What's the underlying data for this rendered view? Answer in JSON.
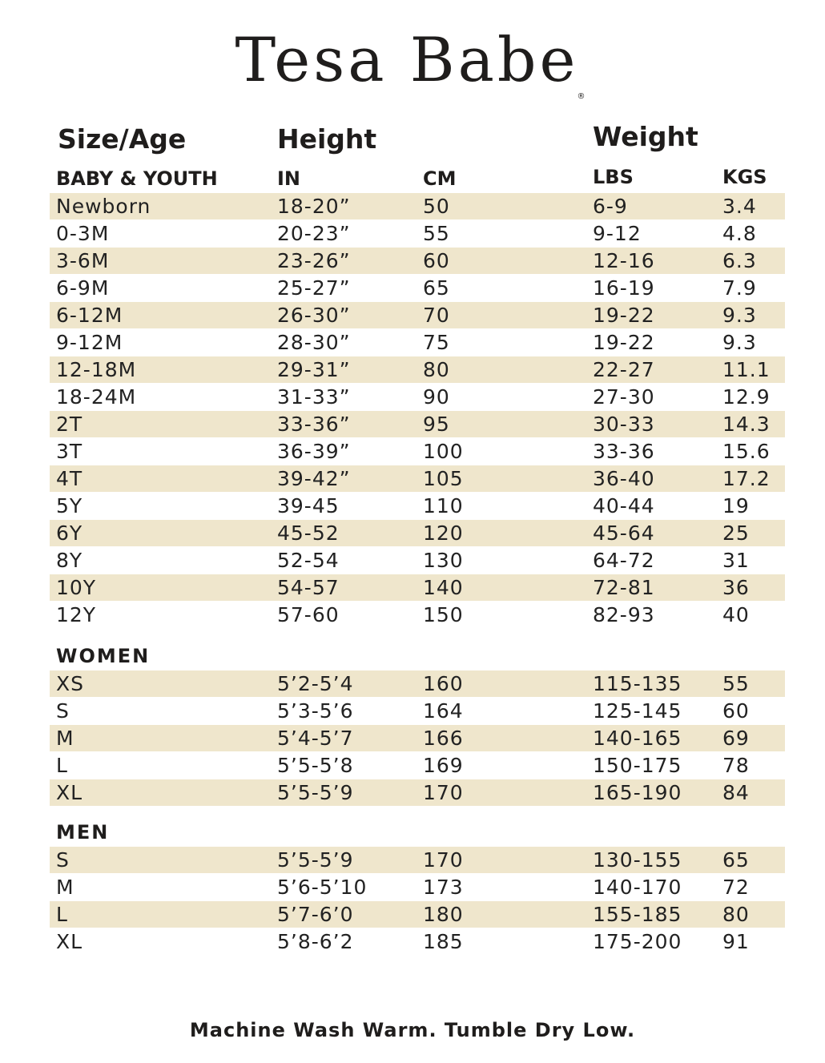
{
  "brand": {
    "name": "Tesa Babe",
    "registered_mark": "®"
  },
  "headers": {
    "size_age": "Size/Age",
    "height": "Height",
    "weight": "Weight",
    "in": "IN",
    "cm": "CM",
    "lbs": "LBS",
    "kgs": "KGS"
  },
  "sections": [
    {
      "title": "BABY & YOUTH",
      "rows": [
        {
          "size": "Newborn",
          "in": "18-20”",
          "cm": "50",
          "lbs": "6-9",
          "kgs": "3.4"
        },
        {
          "size": "0-3M",
          "in": "20-23”",
          "cm": "55",
          "lbs": "9-12",
          "kgs": "4.8"
        },
        {
          "size": "3-6M",
          "in": "23-26”",
          "cm": "60",
          "lbs": "12-16",
          "kgs": "6.3"
        },
        {
          "size": "6-9M",
          "in": "25-27”",
          "cm": "65",
          "lbs": "16-19",
          "kgs": "7.9"
        },
        {
          "size": "6-12M",
          "in": "26-30”",
          "cm": "70",
          "lbs": "19-22",
          "kgs": "9.3"
        },
        {
          "size": "9-12M",
          "in": "28-30”",
          "cm": "75",
          "lbs": "19-22",
          "kgs": "9.3"
        },
        {
          "size": "12-18M",
          "in": "29-31”",
          "cm": "80",
          "lbs": "22-27",
          "kgs": "11.1"
        },
        {
          "size": "18-24M",
          "in": "31-33”",
          "cm": "90",
          "lbs": "27-30",
          "kgs": "12.9"
        },
        {
          "size": "2T",
          "in": "33-36”",
          "cm": "95",
          "lbs": "30-33",
          "kgs": "14.3"
        },
        {
          "size": "3T",
          "in": "36-39”",
          "cm": "100",
          "lbs": "33-36",
          "kgs": "15.6"
        },
        {
          "size": "4T",
          "in": "39-42”",
          "cm": "105",
          "lbs": "36-40",
          "kgs": "17.2"
        },
        {
          "size": "5Y",
          "in": "39-45",
          "cm": "110",
          "lbs": "40-44",
          "kgs": "19"
        },
        {
          "size": "6Y",
          "in": "45-52",
          "cm": "120",
          "lbs": "45-64",
          "kgs": "25"
        },
        {
          "size": "8Y",
          "in": "52-54",
          "cm": "130",
          "lbs": "64-72",
          "kgs": "31"
        },
        {
          "size": "10Y",
          "in": "54-57",
          "cm": "140",
          "lbs": "72-81",
          "kgs": "36"
        },
        {
          "size": "12Y",
          "in": "57-60",
          "cm": "150",
          "lbs": "82-93",
          "kgs": "40"
        }
      ]
    },
    {
      "title": "WOMEN",
      "rows": [
        {
          "size": "XS",
          "in": "5’2-5’4",
          "cm": "160",
          "lbs": "115-135",
          "kgs": "55"
        },
        {
          "size": "S",
          "in": "5’3-5’6",
          "cm": "164",
          "lbs": "125-145",
          "kgs": "60"
        },
        {
          "size": "M",
          "in": "5’4-5’7",
          "cm": "166",
          "lbs": "140-165",
          "kgs": "69"
        },
        {
          "size": "L",
          "in": "5’5-5’8",
          "cm": "169",
          "lbs": "150-175",
          "kgs": "78"
        },
        {
          "size": "XL",
          "in": "5’5-5’9",
          "cm": "170",
          "lbs": "165-190",
          "kgs": "84"
        }
      ]
    },
    {
      "title": "MEN",
      "rows": [
        {
          "size": "S",
          "in": "5’5-5’9",
          "cm": "170",
          "lbs": "130-155",
          "kgs": "65"
        },
        {
          "size": "M",
          "in": "5’6-5’10",
          "cm": "173",
          "lbs": "140-170",
          "kgs": "72"
        },
        {
          "size": "L",
          "in": "5’7-6’0",
          "cm": "180",
          "lbs": "155-185",
          "kgs": "80"
        },
        {
          "size": "XL",
          "in": "5’8-6’2",
          "cm": "185",
          "lbs": "175-200",
          "kgs": "91"
        }
      ]
    }
  ],
  "footer": "Machine Wash Warm. Tumble Dry Low."
}
